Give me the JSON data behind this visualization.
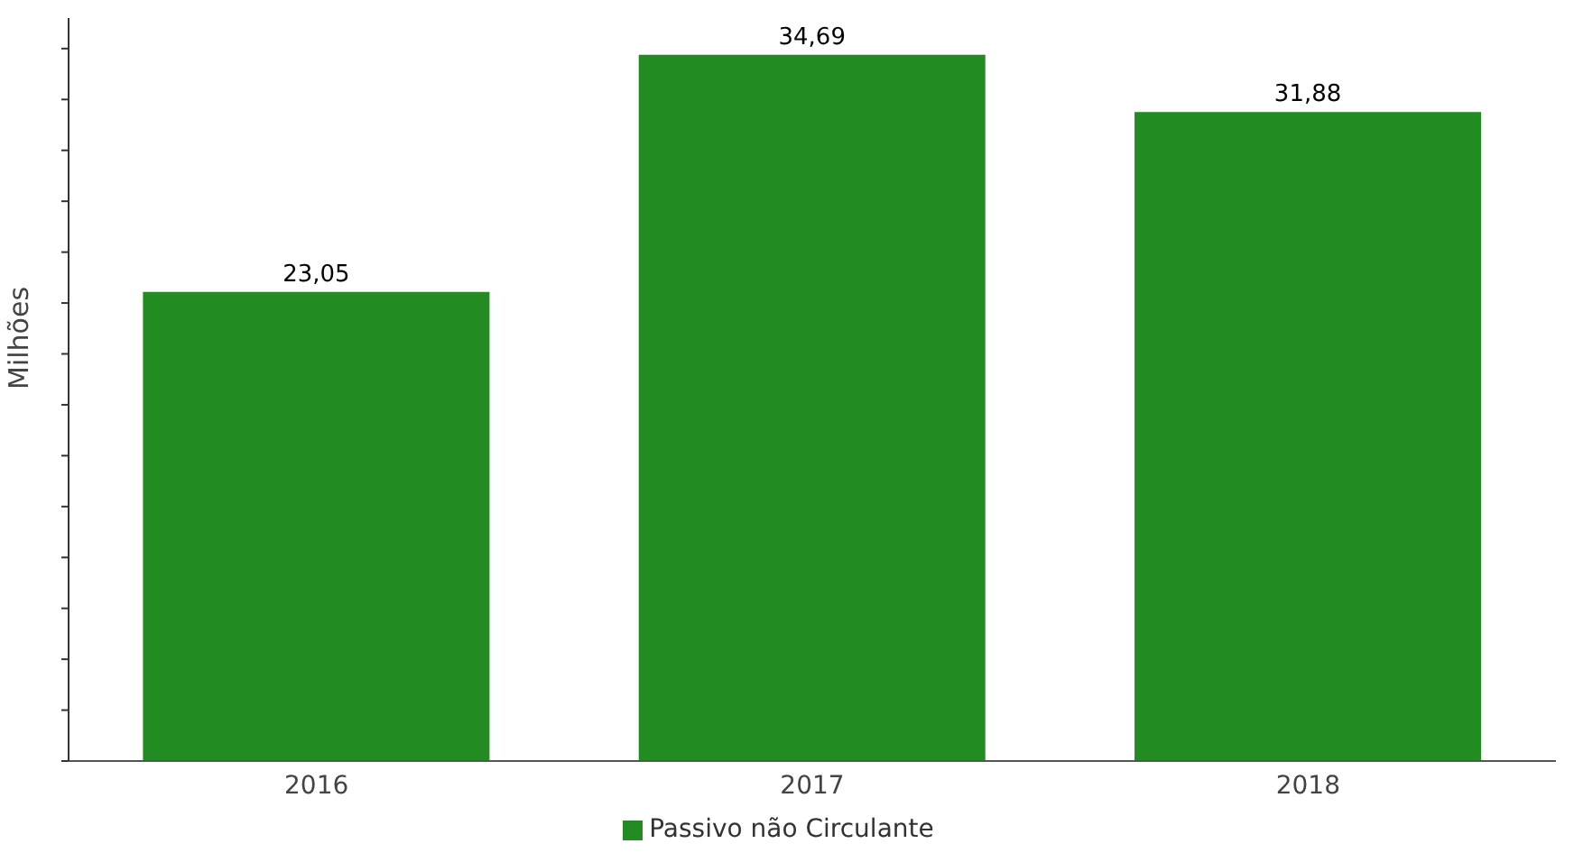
{
  "chart_data": {
    "type": "bar",
    "ylabel": "Milhões",
    "categories": [
      "2016",
      "2017",
      "2018"
    ],
    "series": [
      {
        "name": "Passivo não Circulante",
        "color": "#228b22",
        "values": [
          23.05,
          34.69,
          31.88
        ],
        "value_labels": [
          "23,05",
          "34,69",
          "31,88"
        ]
      }
    ],
    "ylim": [
      0,
      36.5
    ],
    "yticks": [
      {
        "value": 0,
        "label": null
      },
      {
        "value": 2.5,
        "label": null
      },
      {
        "value": 5,
        "label": null
      },
      {
        "value": 7.5,
        "label": null
      },
      {
        "value": 10,
        "label": null
      },
      {
        "value": 12.5,
        "label": null
      },
      {
        "value": 15,
        "label": null
      },
      {
        "value": 17.5,
        "label": null
      },
      {
        "value": 20,
        "label": null
      },
      {
        "value": 22.5,
        "label": null
      },
      {
        "value": 25,
        "label": null
      },
      {
        "value": 27.5,
        "label": null
      },
      {
        "value": 30,
        "label": null
      },
      {
        "value": 32.5,
        "label": null
      },
      {
        "value": 35,
        "label": null
      }
    ],
    "legend": "bottom",
    "grid": false
  }
}
